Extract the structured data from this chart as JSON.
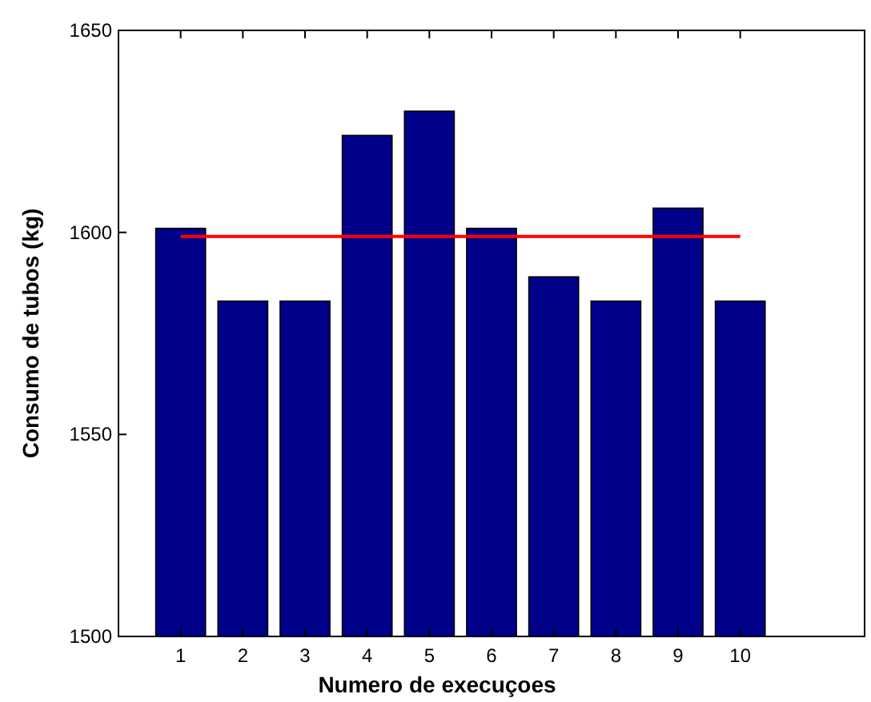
{
  "chart_data": {
    "type": "bar",
    "xlabel": "Numero de execuçoes",
    "ylabel": "Consumo de tubos (kg)",
    "x": [
      1,
      2,
      3,
      4,
      5,
      6,
      7,
      8,
      9,
      10
    ],
    "series": [
      {
        "color": "#00008b",
        "values": [
          1601,
          1583,
          1583,
          1624,
          1630,
          1601,
          1589,
          1583,
          1606,
          1583
        ]
      },
      {
        "type": "line",
        "color": "#ff0000",
        "x": [
          1,
          10
        ],
        "values": [
          1599,
          1599
        ]
      }
    ],
    "xlim": [
      0,
      12
    ],
    "xticks": [
      1,
      2,
      3,
      4,
      5,
      6,
      7,
      8,
      9,
      10
    ],
    "ylim": [
      1500,
      1650
    ],
    "yticks": [
      1500,
      1550,
      1600,
      1650
    ],
    "grid": false
  }
}
